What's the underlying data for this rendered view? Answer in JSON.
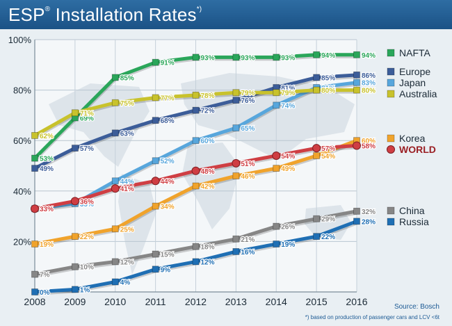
{
  "header": {
    "title": "ESP",
    "title_rest": " Installation Rates",
    "title_mark": "®",
    "title_note": "*)"
  },
  "source": "Source: Bosch",
  "footnote": "*) based on production of passenger cars and LCV <6t",
  "chart_data": {
    "type": "line",
    "title": "ESP® Installation Rates*)",
    "x": [
      "2008",
      "2009",
      "2010",
      "2011",
      "2012",
      "2013",
      "2014",
      "2015",
      "2016"
    ],
    "ylim": [
      0,
      100
    ],
    "yticks": [
      "20%",
      "40%",
      "60%",
      "80%",
      "100%"
    ],
    "grid": true,
    "legend_position": "right",
    "series": [
      {
        "name": "NAFTA",
        "color": "#2aa65a",
        "values": [
          53,
          69,
          85,
          91,
          93,
          93,
          93,
          94,
          94
        ],
        "labels": [
          "53%",
          "69%",
          "85%",
          "91%",
          "93%",
          "93%",
          "93%",
          "94%",
          "94%"
        ]
      },
      {
        "name": "Europe",
        "color": "#3c5d99",
        "values": [
          49,
          57,
          63,
          68,
          72,
          76,
          81,
          85,
          86
        ],
        "labels": [
          "49%",
          "57%",
          "63%",
          "68%",
          "72%",
          "76%",
          "81%",
          "85%",
          "86%"
        ]
      },
      {
        "name": "Japan",
        "color": "#57a6dc",
        "values": [
          33,
          35,
          44,
          52,
          60,
          65,
          74,
          81,
          83
        ],
        "labels": [
          "33%",
          "35%",
          "44%",
          "52%",
          "60%",
          "65%",
          "74%",
          "81%",
          "83%"
        ]
      },
      {
        "name": "Australia",
        "color": "#c8c22c",
        "values": [
          62,
          71,
          75,
          77,
          78,
          79,
          79,
          80,
          80
        ],
        "labels": [
          "62%",
          "71%",
          "75%",
          "77%",
          "78%",
          "79%",
          "79%",
          "80%",
          "80%"
        ]
      },
      {
        "name": "Korea",
        "color": "#f0a32c",
        "values": [
          19,
          22,
          25,
          34,
          42,
          46,
          49,
          54,
          60
        ],
        "labels": [
          "19%",
          "22%",
          "25%",
          "34%",
          "42%",
          "46%",
          "49%",
          "54%",
          "60%"
        ]
      },
      {
        "name": "WORLD",
        "color": "#cf3e43",
        "values": [
          33,
          36,
          41,
          44,
          48,
          51,
          54,
          57,
          58
        ],
        "labels": [
          "33%",
          "36%",
          "41%",
          "44%",
          "48%",
          "51%",
          "54%",
          "57%",
          "58%"
        ]
      },
      {
        "name": "China",
        "color": "#868686",
        "values": [
          7,
          10,
          12,
          15,
          18,
          21,
          26,
          29,
          32
        ],
        "labels": [
          "7%",
          "10%",
          "12%",
          "15%",
          "18%",
          "21%",
          "26%",
          "29%",
          "32%"
        ]
      },
      {
        "name": "Russia",
        "color": "#1f6fb4",
        "values": [
          0,
          1,
          4,
          9,
          12,
          16,
          19,
          22,
          28
        ],
        "labels": [
          "0%",
          "1%",
          "4%",
          "9%",
          "12%",
          "16%",
          "19%",
          "22%",
          "28%"
        ]
      }
    ]
  }
}
